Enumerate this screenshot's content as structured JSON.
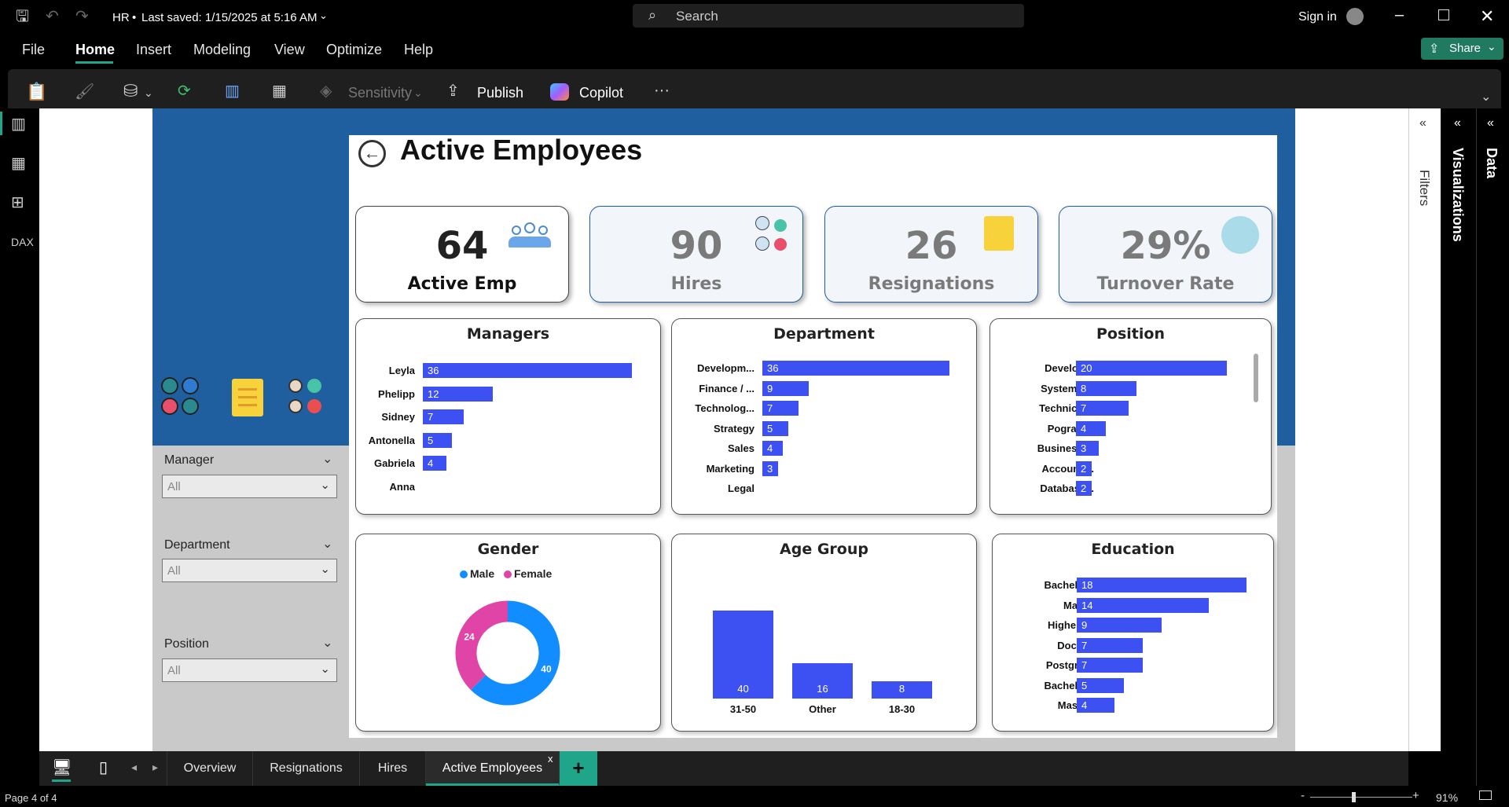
{
  "titlebar": {
    "doc_title": "HR",
    "last_saved": "Last saved: 1/15/2025 at 5:16 AM",
    "search_placeholder": "Search",
    "sign_in": "Sign in"
  },
  "menu": {
    "items": [
      "File",
      "Home",
      "Insert",
      "Modeling",
      "View",
      "Optimize",
      "Help"
    ],
    "share": "Share"
  },
  "ribbon": {
    "sensitivity": "Sensitivity",
    "publish": "Publish",
    "copilot": "Copilot",
    "more": "···"
  },
  "report": {
    "title": "Active Employees",
    "kpis": [
      {
        "value": "64",
        "label": "Active Emp"
      },
      {
        "value": "90",
        "label": "Hires"
      },
      {
        "value": "26",
        "label": "Resignations"
      },
      {
        "value": "29%",
        "label": "Turnover Rate"
      }
    ],
    "slicers": [
      {
        "label": "Manager",
        "value": "All"
      },
      {
        "label": "Department",
        "value": "All"
      },
      {
        "label": "Position",
        "value": "All"
      }
    ]
  },
  "chart_data": [
    {
      "type": "bar",
      "title": "Managers",
      "categories": [
        "Leyla",
        "Phelipp",
        "Sidney",
        "Antonella",
        "Gabriela",
        "Anna"
      ],
      "values": [
        36,
        12,
        7,
        5,
        4,
        null
      ]
    },
    {
      "type": "bar",
      "title": "Department",
      "categories": [
        "Developm...",
        "Finance / ...",
        "Technolog...",
        "Strategy",
        "Sales",
        "Marketing",
        "Legal"
      ],
      "values": [
        36,
        9,
        7,
        5,
        4,
        3,
        null
      ]
    },
    {
      "type": "bar",
      "title": "Position",
      "categories": [
        "Developer",
        "Systems ...",
        "Technical...",
        "Pogram...",
        "Business ...",
        "Accounti...",
        "Database..."
      ],
      "values": [
        20,
        8,
        7,
        4,
        3,
        2,
        2
      ]
    },
    {
      "type": "pie",
      "title": "Gender",
      "categories": [
        "Male",
        "Female"
      ],
      "values": [
        40,
        24
      ],
      "colors": [
        "#118dff",
        "#e044a7"
      ],
      "legend": "top"
    },
    {
      "type": "bar",
      "title": "Age Group",
      "categories": [
        "31-50",
        "Other",
        "18-30"
      ],
      "values": [
        40,
        16,
        8
      ]
    },
    {
      "type": "bar",
      "title": "Education",
      "categories": [
        "Bachelor'...",
        "Major's",
        "Higher C...",
        "Doctoral",
        "Postgrad...",
        "Bachelor'...",
        "Master's"
      ],
      "values": [
        18,
        14,
        9,
        7,
        7,
        5,
        4
      ]
    }
  ],
  "tabs": [
    "Overview",
    "Resignations",
    "Hires",
    "Active Employees"
  ],
  "status": {
    "page": "Page 4 of 4",
    "zoom": "91%"
  },
  "side": {
    "filters": "Filters",
    "visualizations": "Visualizations",
    "data": "Data"
  },
  "colors": {
    "bar": "#3d51f2",
    "sidebar": "#1f5f9f",
    "accent": "#1fa58a"
  }
}
